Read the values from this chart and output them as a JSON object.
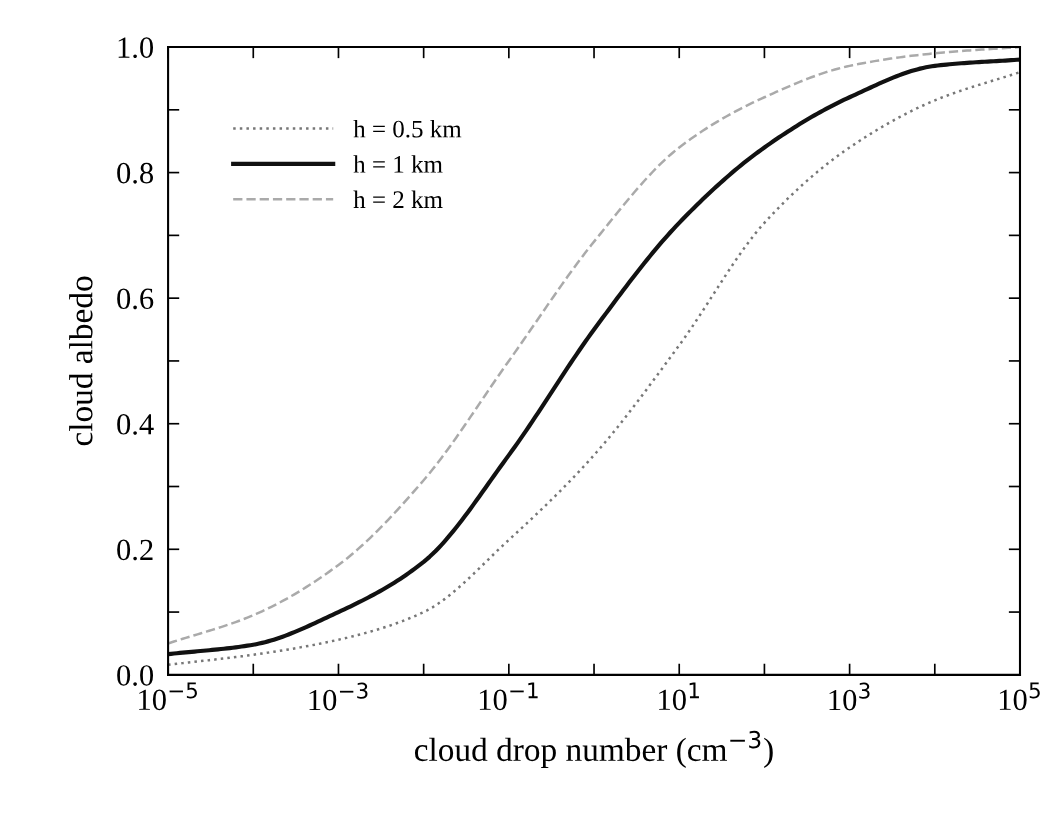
{
  "chart_data": {
    "type": "line",
    "xlabel": "cloud drop number (cm$^{−3}$)",
    "ylabel": "cloud albedo",
    "log": "x",
    "x": [
      1e-05,
      0.0001,
      0.001,
      0.01,
      0.1,
      1,
      10,
      100,
      1000,
      10000,
      100000
    ],
    "series": [
      {
        "name": "h = 0.5 km",
        "color": "#777777",
        "line_style": "dotted",
        "values": [
          0.016,
          0.032,
          0.056,
          0.1,
          0.215,
          0.35,
          0.525,
          0.72,
          0.84,
          0.915,
          0.96
        ]
      },
      {
        "name": "h = 1 km",
        "color": "#111111",
        "line_style": "solid",
        "values": [
          0.033,
          0.048,
          0.1,
          0.18,
          0.35,
          0.55,
          0.72,
          0.84,
          0.92,
          0.97,
          0.98
        ]
      },
      {
        "name": "h = 2 km",
        "color": "#aaaaaa",
        "line_style": "dashed",
        "values": [
          0.05,
          0.095,
          0.175,
          0.31,
          0.5,
          0.69,
          0.84,
          0.92,
          0.97,
          0.99,
          1.0
        ]
      }
    ],
    "xlim": [
      1e-05,
      100000.0
    ],
    "xticks": [
      {
        "value": 1e-05,
        "label": "10$^{−5}$"
      },
      {
        "value": 0.0001,
        "label": null
      },
      {
        "value": 0.001,
        "label": "10$^{−3}$"
      },
      {
        "value": 0.01,
        "label": null
      },
      {
        "value": 0.1,
        "label": "10$^{−1}$"
      },
      {
        "value": 1,
        "label": null
      },
      {
        "value": 10,
        "label": "10$^{1}$"
      },
      {
        "value": 100,
        "label": null
      },
      {
        "value": 1000,
        "label": "10$^{3}$"
      },
      {
        "value": 10000,
        "label": null
      },
      {
        "value": 100000,
        "label": "10$^{5}$"
      }
    ],
    "ylim": [
      0,
      1
    ],
    "yticks": [
      {
        "value": 0,
        "label": "0.0"
      },
      {
        "value": 0.1,
        "label": null
      },
      {
        "value": 0.2,
        "label": "0.2"
      },
      {
        "value": 0.3,
        "label": null
      },
      {
        "value": 0.4,
        "label": "0.4"
      },
      {
        "value": 0.5,
        "label": null
      },
      {
        "value": 0.6,
        "label": "0.6"
      },
      {
        "value": 0.7,
        "label": null
      },
      {
        "value": 0.8,
        "label": "0.8"
      },
      {
        "value": 0.9,
        "label": null
      },
      {
        "value": 1,
        "label": "1.0"
      }
    ],
    "grid": false,
    "legend": "top left",
    "marker": "none"
  }
}
